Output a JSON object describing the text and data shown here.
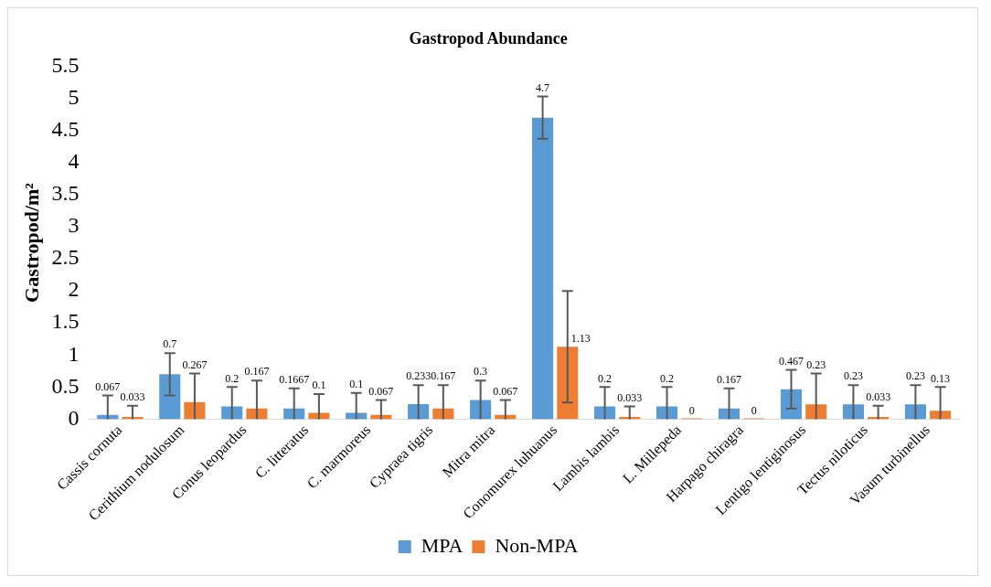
{
  "chart_data": {
    "type": "bar",
    "title": "Gastropod Abundance",
    "ylabel": "Gastropod/m²",
    "categories": [
      "Cassis cornuta",
      "Cerithium nodulosum",
      "Conus leopardus",
      "C. litteratus",
      "C. marmoreus",
      "Cypraea tigris",
      "Mitra mitra",
      "Conomurex luhuanus",
      "Lambis lambis",
      "L. Millepeda",
      "Harpago chiragra",
      "Lentigo lentiginosus",
      "Tectus niloticus",
      "Vasum turbinellus"
    ],
    "series": [
      {
        "name": "MPA",
        "color": "#5b9bd5",
        "values": [
          0.067,
          0.7,
          0.2,
          0.1667,
          0.1,
          0.233,
          0.3,
          4.7,
          0.2,
          0.2,
          0.167,
          0.467,
          0.23,
          0.23
        ],
        "errors": [
          [
            0,
            0.37
          ],
          0.33,
          [
            0,
            0.5
          ],
          [
            0,
            0.48
          ],
          [
            0,
            0.41
          ],
          [
            0,
            0.53
          ],
          [
            0,
            0.6
          ],
          0.33,
          [
            0,
            0.5
          ],
          [
            0,
            0.5
          ],
          [
            0,
            0.48
          ],
          0.3,
          [
            0,
            0.53
          ],
          [
            0,
            0.53
          ]
        ]
      },
      {
        "name": "Non-MPA",
        "color": "#ed7d31",
        "values": [
          0.033,
          0.267,
          0.167,
          0.1,
          0.067,
          0.167,
          0.067,
          1.13,
          0.033,
          0,
          0,
          0.23,
          0.033,
          0.13
        ],
        "errors": [
          [
            0,
            0.21
          ],
          [
            0,
            0.71
          ],
          [
            0,
            0.6
          ],
          [
            0,
            0.39
          ],
          [
            0,
            0.3
          ],
          [
            0,
            0.53
          ],
          [
            0,
            0.3
          ],
          0.87,
          [
            0,
            0.2
          ],
          null,
          null,
          [
            0,
            0.71
          ],
          [
            0,
            0.21
          ],
          [
            0,
            0.5
          ]
        ]
      }
    ],
    "ylim": [
      0,
      5.5
    ],
    "yticks": [
      0,
      0.5,
      1,
      1.5,
      2,
      2.5,
      3,
      3.5,
      4,
      4.5,
      5,
      5.5
    ],
    "grid": false,
    "legend": "bottom",
    "data_labels": true
  }
}
